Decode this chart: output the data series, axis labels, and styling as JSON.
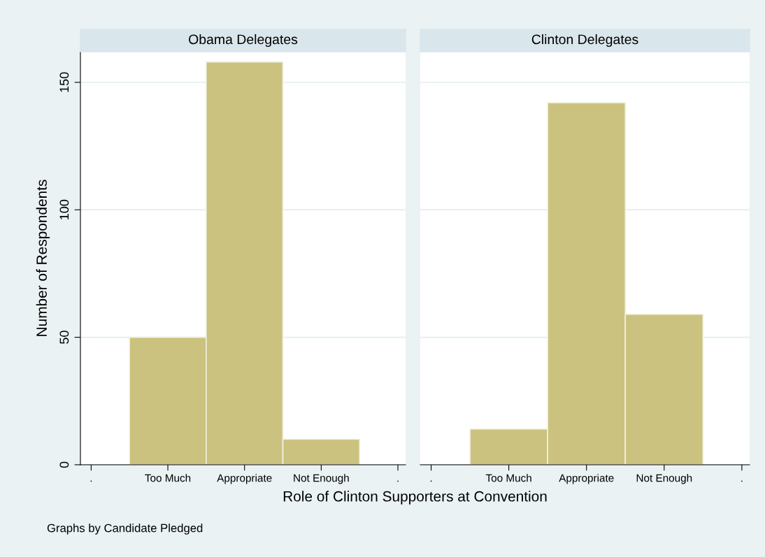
{
  "chart_data": [
    {
      "type": "bar",
      "title": "Obama Delegates",
      "xlabel": "Role of Clinton Supporters at Convention",
      "ylabel": "Number of Respondents",
      "annotations": [
        "Graphs by Candidate Pledged"
      ],
      "categories": [
        ".",
        "Too Much",
        "Appropriate",
        "Not Enough",
        "."
      ],
      "values": [
        null,
        50,
        158,
        10,
        null
      ],
      "color": "#cbc27f",
      "ylim": [
        0,
        162
      ],
      "yticks": [
        0,
        50,
        100,
        150
      ],
      "grid": "y",
      "legend": false
    },
    {
      "type": "bar",
      "title": "Clinton Delegates",
      "categories": [
        ".",
        "Too Much",
        "Appropriate",
        "Not Enough",
        "."
      ],
      "values": [
        null,
        14,
        142,
        59,
        null
      ],
      "color": "#cbc27f",
      "ylim": [
        0,
        162
      ],
      "yticks": [
        0,
        50,
        100,
        150
      ],
      "grid": "y",
      "legend": false,
      "tick_labels": "x"
    }
  ]
}
